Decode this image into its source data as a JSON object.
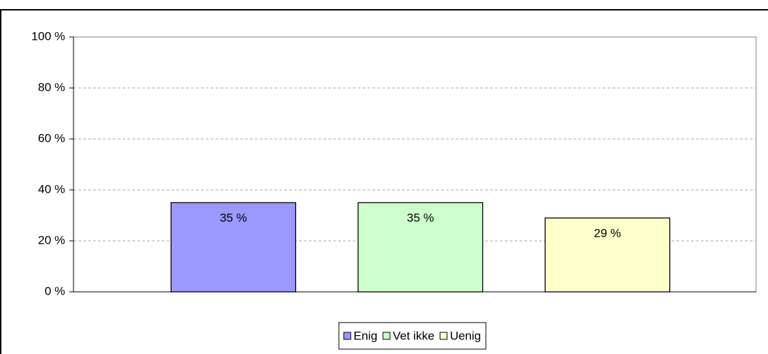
{
  "chart_data": {
    "type": "bar",
    "categories": [
      null
    ],
    "series": [
      {
        "name": "Enig",
        "color": "#9999ff",
        "values": [
          35
        ],
        "value_labels": [
          "35 %"
        ]
      },
      {
        "name": "Vet ikke",
        "color": "#ccffcc",
        "values": [
          35
        ],
        "value_labels": [
          "35 %"
        ]
      },
      {
        "name": "Uenig",
        "color": "#ffffcc",
        "values": [
          29
        ],
        "value_labels": [
          "29 %"
        ]
      }
    ],
    "ylim": [
      0,
      100
    ],
    "yticks": [
      {
        "value": 0,
        "label": "0 %"
      },
      {
        "value": 20,
        "label": "20 %"
      },
      {
        "value": 40,
        "label": "40 %"
      },
      {
        "value": 60,
        "label": "60 %"
      },
      {
        "value": 80,
        "label": "80 %"
      },
      {
        "value": 100,
        "label": "100 %"
      }
    ],
    "grid": true,
    "legend": "bottom"
  }
}
